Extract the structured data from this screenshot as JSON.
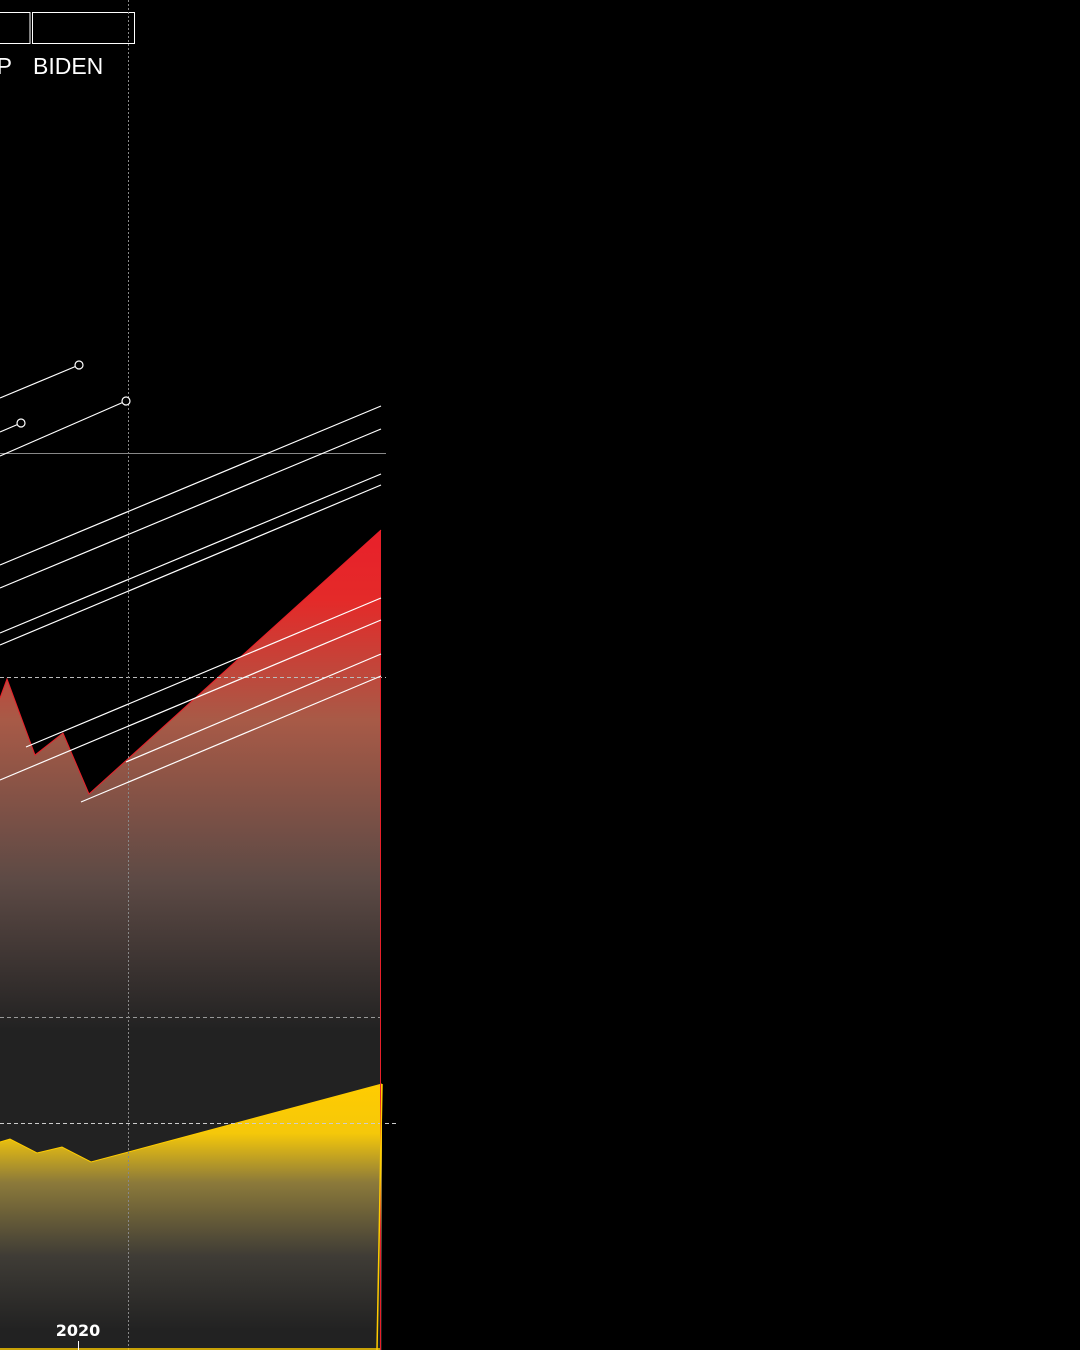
{
  "chart_data": {
    "type": "area",
    "presidents": [
      {
        "name": "TRUMP"
      },
      {
        "name": "BIDEN"
      }
    ],
    "x_ticks": [
      "2020"
    ],
    "series": [
      {
        "color": "#e8202a",
        "points": [
          [
            0,
            698
          ],
          [
            7,
            679
          ],
          [
            35,
            755
          ],
          [
            63,
            733
          ],
          [
            89,
            794
          ],
          [
            381,
            530
          ]
        ]
      },
      {
        "color": "#ffcc00",
        "points": [
          [
            0,
            1142
          ],
          [
            10,
            1139
          ],
          [
            37,
            1153
          ],
          [
            62,
            1147
          ],
          [
            91,
            1162
          ],
          [
            382,
            1084
          ]
        ]
      }
    ],
    "trend_lines": [
      {
        "x1": 0,
        "y1": 398,
        "x2": 79,
        "y2": 365,
        "marker": true
      },
      {
        "x1": 0,
        "y1": 432,
        "x2": 21,
        "y2": 423,
        "marker": true
      },
      {
        "x1": 0,
        "y1": 456,
        "x2": 126,
        "y2": 401,
        "marker": true
      },
      {
        "x1": 0,
        "y1": 565,
        "x2": 381,
        "y2": 406,
        "marker": false
      },
      {
        "x1": 0,
        "y1": 588,
        "x2": 381,
        "y2": 429,
        "marker": false
      },
      {
        "x1": 0,
        "y1": 633,
        "x2": 381,
        "y2": 474,
        "marker": false
      },
      {
        "x1": 0,
        "y1": 645,
        "x2": 381,
        "y2": 485,
        "marker": false
      },
      {
        "x1": 26,
        "y1": 747,
        "x2": 381,
        "y2": 598,
        "marker": false
      },
      {
        "x1": 0,
        "y1": 780,
        "x2": 381,
        "y2": 620,
        "marker": false
      },
      {
        "x1": 126,
        "y1": 762,
        "x2": 381,
        "y2": 654,
        "marker": false
      },
      {
        "x1": 81,
        "y1": 802,
        "x2": 381,
        "y2": 676,
        "marker": false
      }
    ]
  }
}
